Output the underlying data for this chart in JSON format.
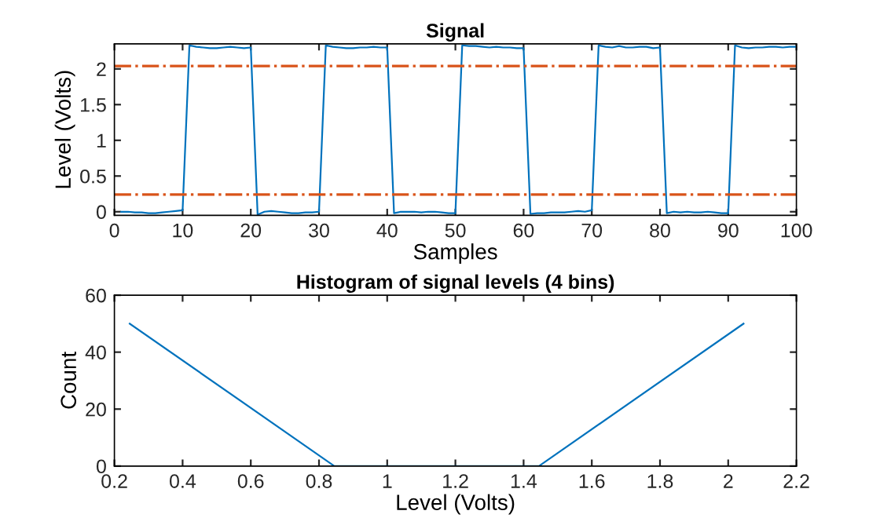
{
  "chart_data": [
    {
      "type": "line",
      "title": "Signal",
      "xlabel": "Samples",
      "ylabel": "Level (Volts)",
      "x": [
        1,
        2,
        3,
        4,
        5,
        6,
        7,
        8,
        9,
        10,
        11,
        12,
        13,
        14,
        15,
        16,
        17,
        18,
        19,
        20,
        21,
        22,
        23,
        24,
        25,
        26,
        27,
        28,
        29,
        30,
        31,
        32,
        33,
        34,
        35,
        36,
        37,
        38,
        39,
        40,
        41,
        42,
        43,
        44,
        45,
        46,
        47,
        48,
        49,
        50,
        51,
        52,
        53,
        54,
        55,
        56,
        57,
        58,
        59,
        60,
        61,
        62,
        63,
        64,
        65,
        66,
        67,
        68,
        69,
        70,
        71,
        72,
        73,
        74,
        75,
        76,
        77,
        78,
        79,
        80,
        81,
        82,
        83,
        84,
        85,
        86,
        87,
        88,
        89,
        90,
        91,
        92,
        93,
        94,
        95,
        96,
        97,
        98,
        99,
        100
      ],
      "series": [
        {
          "color": "#0072bd",
          "values": [
            0.0,
            0.0,
            -0.01,
            -0.01,
            -0.02,
            -0.02,
            -0.01,
            0.0,
            0.01,
            0.02,
            2.33,
            2.31,
            2.3,
            2.29,
            2.29,
            2.3,
            2.31,
            2.3,
            2.29,
            2.3,
            -0.04,
            0.0,
            0.01,
            0.0,
            -0.01,
            -0.02,
            -0.02,
            -0.01,
            -0.01,
            0.0,
            2.33,
            2.31,
            2.3,
            2.29,
            2.29,
            2.3,
            2.3,
            2.31,
            2.3,
            2.3,
            -0.02,
            0.0,
            0.0,
            0.0,
            -0.01,
            0.0,
            0.0,
            -0.01,
            -0.02,
            -0.02,
            2.33,
            2.32,
            2.32,
            2.31,
            2.3,
            2.31,
            2.3,
            2.3,
            2.29,
            2.29,
            -0.03,
            -0.02,
            -0.02,
            -0.01,
            -0.01,
            -0.01,
            0.0,
            0.01,
            0.0,
            0.02,
            2.33,
            2.31,
            2.3,
            2.32,
            2.3,
            2.3,
            2.31,
            2.31,
            2.29,
            2.3,
            -0.02,
            0.0,
            -0.01,
            0.0,
            -0.01,
            -0.01,
            0.0,
            -0.01,
            -0.02,
            -0.02,
            2.33,
            2.3,
            2.29,
            2.3,
            2.3,
            2.31,
            2.31,
            2.3,
            2.31,
            2.31
          ]
        }
      ],
      "ref_lines": [
        {
          "axis": "y",
          "value": 2.04,
          "color": "#d95319",
          "line_style": "dashdot"
        },
        {
          "axis": "y",
          "value": 0.24,
          "color": "#d95319",
          "line_style": "dashdot"
        }
      ],
      "xlim": [
        0,
        100
      ],
      "xticks": [
        0,
        10,
        20,
        30,
        40,
        50,
        60,
        70,
        80,
        90,
        100
      ],
      "ylim": [
        -0.05,
        2.35
      ],
      "yticks": [
        0,
        0.5,
        1,
        1.5,
        2
      ],
      "grid": false,
      "legend": false
    },
    {
      "type": "line",
      "title": "Histogram of signal levels (4 bins)",
      "xlabel": "Level (Volts)",
      "ylabel": "Count",
      "x": [
        0.245,
        0.845,
        1.445,
        2.045
      ],
      "series": [
        {
          "color": "#0072bd",
          "values": [
            50,
            0,
            0,
            50
          ]
        }
      ],
      "xlim": [
        0.2,
        2.2
      ],
      "xticks": [
        0.2,
        0.4,
        0.6,
        0.8,
        1,
        1.2,
        1.4,
        1.6,
        1.8,
        2,
        2.2
      ],
      "ylim": [
        0,
        60
      ],
      "yticks": [
        0,
        20,
        40,
        60
      ],
      "grid": false,
      "legend": false
    }
  ]
}
